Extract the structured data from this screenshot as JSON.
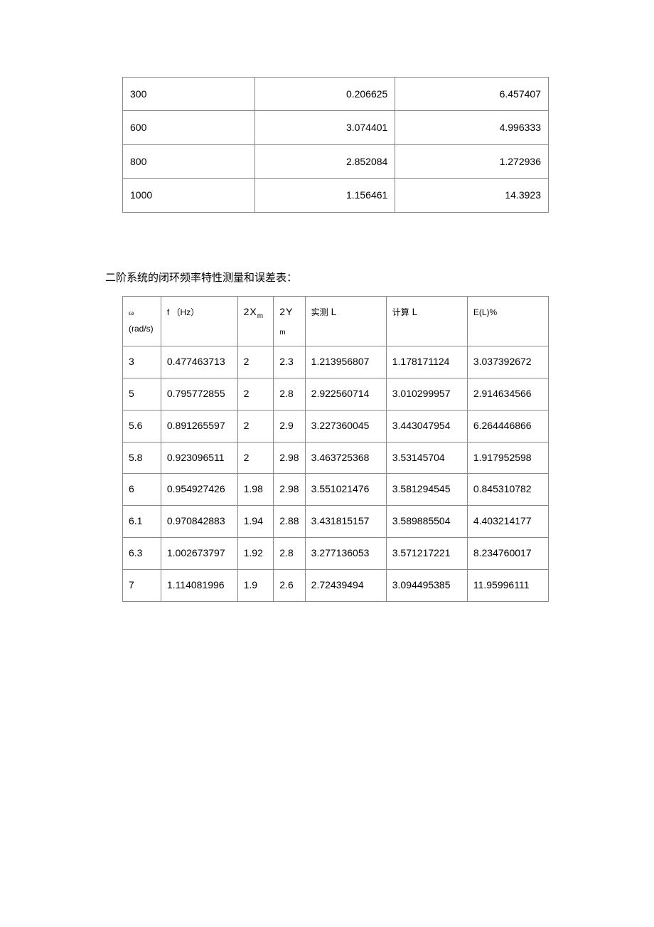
{
  "table1": {
    "rows": [
      {
        "c1": "300",
        "c2": "0.206625",
        "c3": "6.457407"
      },
      {
        "c1": "600",
        "c2": "3.074401",
        "c3": "4.996333"
      },
      {
        "c1": "800",
        "c2": "2.852084",
        "c3": "1.272936"
      },
      {
        "c1": "1000",
        "c2": "1.156461",
        "c3": "14.3923"
      }
    ]
  },
  "caption": "二阶系统的闭环频率特性测量和误差表：",
  "table2": {
    "header": {
      "omega_sym": "ω",
      "omega_unit": "(rad/s)",
      "fhz": "f （Hz）",
      "xm_prefix": "2X",
      "xm_sub": "m",
      "ym_prefix": "2Y",
      "ym_sub": "m",
      "lm_cn": "实测",
      "lm_sym": "L",
      "lc_cn": "计算",
      "lc_sym": "L",
      "el": "E(L)%"
    },
    "rows": [
      {
        "omega": "3",
        "fhz": "0.477463713",
        "xm": "2",
        "ym": "2.3",
        "lm": "1.213956807",
        "lc": "1.178171124",
        "el": "3.037392672"
      },
      {
        "omega": "5",
        "fhz": "0.795772855",
        "xm": "2",
        "ym": "2.8",
        "lm": "2.922560714",
        "lc": "3.010299957",
        "el": "2.914634566"
      },
      {
        "omega": "5.6",
        "fhz": "0.891265597",
        "xm": "2",
        "ym": "2.9",
        "lm": "3.227360045",
        "lc": "3.443047954",
        "el": "6.264446866"
      },
      {
        "omega": "5.8",
        "fhz": "0.923096511",
        "xm": "2",
        "ym": "2.98",
        "lm": "3.463725368",
        "lc": "3.53145704",
        "el": "1.917952598"
      },
      {
        "omega": "6",
        "fhz": "0.954927426",
        "xm": "1.98",
        "ym": "2.98",
        "lm": "3.551021476",
        "lc": "3.581294545",
        "el": "0.845310782"
      },
      {
        "omega": "6.1",
        "fhz": "0.970842883",
        "xm": "1.94",
        "ym": "2.88",
        "lm": "3.431815157",
        "lc": "3.589885504",
        "el": "4.403214177"
      },
      {
        "omega": "6.3",
        "fhz": "1.002673797",
        "xm": "1.92",
        "ym": "2.8",
        "lm": "3.277136053",
        "lc": "3.571217221",
        "el": "8.234760017"
      },
      {
        "omega": "7",
        "fhz": "1.114081996",
        "xm": "1.9",
        "ym": "2.6",
        "lm": "2.72439494",
        "lc": "3.094495385",
        "el": "11.95996111"
      }
    ]
  }
}
